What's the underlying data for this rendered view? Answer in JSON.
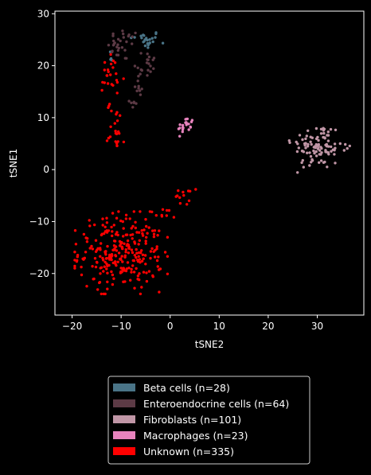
{
  "chart_data": {
    "type": "scatter",
    "xlabel": "tSNE2",
    "ylabel": "tSNE1",
    "xlim": [
      -23.5,
      39.5
    ],
    "ylim": [
      -28,
      30.5
    ],
    "xticks": [
      -20,
      -10,
      0,
      10,
      20,
      30
    ],
    "yticks": [
      -20,
      -10,
      0,
      10,
      20,
      30
    ],
    "xtick_labels": [
      "−20",
      "−10",
      "0",
      "10",
      "20",
      "30"
    ],
    "ytick_labels": [
      "−20",
      "−10",
      "0",
      "10",
      "20",
      "30"
    ],
    "grid": false,
    "legend_placement": "below",
    "series": [
      {
        "name": "Beta cells (n=28)",
        "color": "#4a7487",
        "count": 28,
        "clusters": [
          {
            "center": [
              -5.0,
              25.0
            ],
            "spread": [
              1.6,
              0.9
            ],
            "n": 24
          },
          {
            "center": [
              -12.0,
              21.5
            ],
            "spread": [
              0.4,
              0.8
            ],
            "n": 4
          }
        ]
      },
      {
        "name": "Enteroendocrine cells (n=64)",
        "color": "#5c3a45",
        "count": 64,
        "clusters": [
          {
            "center": [
              -9.5,
              24.0
            ],
            "spread": [
              1.6,
              1.6
            ],
            "n": 30
          },
          {
            "center": [
              -5.0,
              20.5
            ],
            "spread": [
              1.2,
              1.4
            ],
            "n": 18
          },
          {
            "center": [
              -6.5,
              16.5
            ],
            "spread": [
              0.6,
              1.2
            ],
            "n": 10
          },
          {
            "center": [
              -7.5,
              12.5
            ],
            "spread": [
              0.4,
              0.6
            ],
            "n": 6
          }
        ]
      },
      {
        "name": "Fibroblasts (n=101)",
        "color": "#c096a6",
        "count": 101,
        "clusters": [
          {
            "center": [
              30.0,
              4.5
            ],
            "spread": [
              2.6,
              2.3
            ],
            "n": 95
          },
          {
            "center": [
              35.0,
              3.8
            ],
            "spread": [
              1.0,
              0.6
            ],
            "n": 6
          }
        ]
      },
      {
        "name": "Macrophages (n=23)",
        "color": "#e783bd",
        "count": 23,
        "clusters": [
          {
            "center": [
              3.2,
              8.4
            ],
            "spread": [
              0.8,
              0.9
            ],
            "n": 23
          }
        ]
      },
      {
        "name": "Unknown (n=335)",
        "color": "#ff0000",
        "count": 335,
        "clusters": [
          {
            "center": [
              -10.0,
              -16.0
            ],
            "spread": [
              4.3,
              3.6
            ],
            "n": 270
          },
          {
            "center": [
              -12.0,
              17.0
            ],
            "spread": [
              1.3,
              2.6
            ],
            "n": 25
          },
          {
            "center": [
              -11.0,
              8.0
            ],
            "spread": [
              0.9,
              2.4
            ],
            "n": 22
          },
          {
            "center": [
              3.0,
              -5.0
            ],
            "spread": [
              1.0,
              0.9
            ],
            "n": 12
          },
          {
            "center": [
              -1.5,
              -8.5
            ],
            "spread": [
              1.2,
              0.8
            ],
            "n": 6
          }
        ]
      }
    ]
  }
}
